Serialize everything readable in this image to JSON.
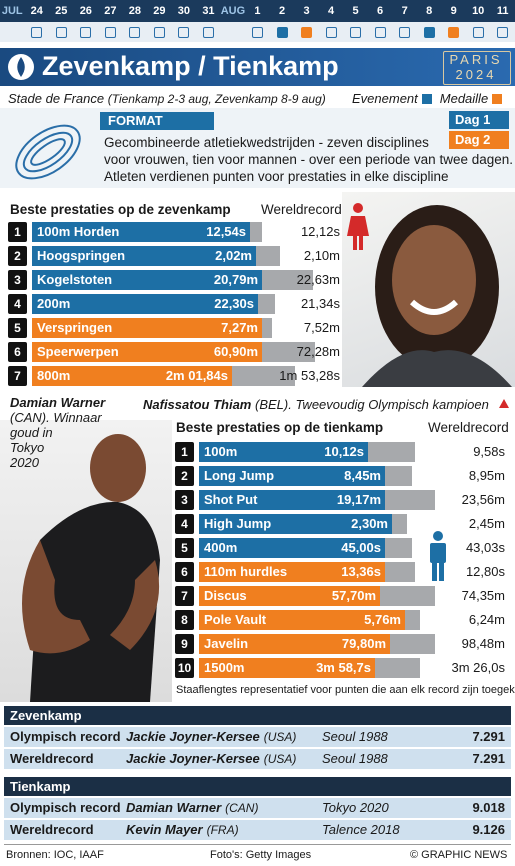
{
  "timeline": [
    {
      "label": "JUL"
    },
    {
      "label": "24",
      "fill": null
    },
    {
      "label": "25",
      "fill": null
    },
    {
      "label": "26",
      "fill": null
    },
    {
      "label": "27",
      "fill": null
    },
    {
      "label": "28",
      "fill": null
    },
    {
      "label": "29",
      "fill": null
    },
    {
      "label": "30",
      "fill": null
    },
    {
      "label": "31",
      "fill": null
    },
    {
      "label": "AUG"
    },
    {
      "label": "1",
      "fill": null
    },
    {
      "label": "2",
      "fill": "#1d6fa5"
    },
    {
      "label": "3",
      "fill": "#f07f1f"
    },
    {
      "label": "4",
      "fill": null
    },
    {
      "label": "5",
      "fill": null
    },
    {
      "label": "6",
      "fill": null
    },
    {
      "label": "7",
      "fill": null
    },
    {
      "label": "8",
      "fill": "#1d6fa5"
    },
    {
      "label": "9",
      "fill": "#f07f1f"
    },
    {
      "label": "10",
      "fill": null
    },
    {
      "label": "11",
      "fill": null
    }
  ],
  "title": "Zevenkamp / Tienkamp",
  "logo": [
    "PARIS",
    "2024"
  ],
  "venue": "Stade de France",
  "venue_dates": "(Tienkamp 2-3 aug, Zevenkamp 8-9 aug)",
  "legend": [
    {
      "label": "Evenement",
      "color": "#1d6fa5"
    },
    {
      "label": "Medaille",
      "color": "#f07f1f"
    }
  ],
  "format": {
    "label": "FORMAT",
    "text": [
      "Gecombineerde atletiekwedstrijden - zeven disciplines",
      "voor vrouwen, tien voor mannen - over een periode van twee dagen.",
      "Atleten verdienen punten voor prestaties in elke discipline"
    ],
    "days": [
      {
        "label": "Dag 1",
        "color": "#1d6fa5"
      },
      {
        "label": "Dag 2",
        "color": "#f07f1f"
      }
    ]
  },
  "heptathlon": {
    "title": "Beste prestaties op de zevenkamp",
    "record_header": "Wereldrecord",
    "events": [
      {
        "rank": 1,
        "name": "100m Horden",
        "best": "12,54s",
        "record": "12,12s",
        "color": "#1d6fa5"
      },
      {
        "rank": 2,
        "name": "Hoogspringen",
        "best": "2,02m",
        "record": "2,10m",
        "color": "#1d6fa5"
      },
      {
        "rank": 3,
        "name": "Kogelstoten",
        "best": "20,79m",
        "record": "22,63m",
        "color": "#1d6fa5"
      },
      {
        "rank": 4,
        "name": "200m",
        "best": "22,30s",
        "record": "21,34s",
        "color": "#1d6fa5"
      },
      {
        "rank": 5,
        "name": "Verspringen",
        "best": "7,27m",
        "record": "7,52m",
        "color": "#f07f1f"
      },
      {
        "rank": 6,
        "name": "Speerwerpen",
        "best": "60,90m",
        "record": "72,28m",
        "color": "#f07f1f"
      },
      {
        "rank": 7,
        "name": "800m",
        "best": "2m 01,84s",
        "record": "1m 53,28s",
        "color": "#f07f1f"
      }
    ]
  },
  "decathlon": {
    "title": "Beste prestaties op de tienkamp",
    "record_header": "Wereldrecord",
    "events": [
      {
        "rank": 1,
        "name": "100m",
        "best": "10,12s",
        "record": "9,58s",
        "color": "#1d6fa5"
      },
      {
        "rank": 2,
        "name": "Long Jump",
        "best": "8,45m",
        "record": "8,95m",
        "color": "#1d6fa5"
      },
      {
        "rank": 3,
        "name": "Shot Put",
        "best": "19,17m",
        "record": "23,56m",
        "color": "#1d6fa5"
      },
      {
        "rank": 4,
        "name": "High Jump",
        "best": "2,30m",
        "record": "2,45m",
        "color": "#1d6fa5"
      },
      {
        "rank": 5,
        "name": "400m",
        "best": "45,00s",
        "record": "43,03s",
        "color": "#1d6fa5"
      },
      {
        "rank": 6,
        "name": "110m hurdles",
        "best": "13,36s",
        "record": "12,80s",
        "color": "#f07f1f"
      },
      {
        "rank": 7,
        "name": "Discus",
        "best": "57,70m",
        "record": "74,35m",
        "color": "#f07f1f"
      },
      {
        "rank": 8,
        "name": "Pole Vault",
        "best": "5,76m",
        "record": "6,24m",
        "color": "#f07f1f"
      },
      {
        "rank": 9,
        "name": "Javelin",
        "best": "79,80m",
        "record": "98,48m",
        "color": "#f07f1f"
      },
      {
        "rank": 10,
        "name": "1500m",
        "best": "3m 58,7s",
        "record": "3m 26,0s",
        "color": "#f07f1f"
      }
    ]
  },
  "warner": {
    "name": "Damian Warner",
    "text": [
      "(CAN). Winnaar",
      "goud in",
      "Tokyo",
      "2020"
    ]
  },
  "thiam": {
    "name": "Nafissatou Thiam",
    "country": "(BEL).",
    "text": "Tweevoudig Olympisch kampioen"
  },
  "note": "Staaflengtes representatief voor punten die aan elk record zijn toegekend",
  "records": [
    {
      "title": "Zevenkamp",
      "rows": [
        {
          "type": "Olympisch record",
          "athlete": "Jackie Joyner-Kersee",
          "country": "(USA)",
          "place": "Seoul 1988",
          "points": "7.291"
        },
        {
          "type": "Wereldrecord",
          "athlete": "Jackie Joyner-Kersee",
          "country": "(USA)",
          "place": "Seoul 1988",
          "points": "7.291"
        }
      ]
    },
    {
      "title": "Tienkamp",
      "rows": [
        {
          "type": "Olympisch record",
          "athlete": "Damian Warner",
          "country": "(CAN)",
          "place": "Tokyo 2020",
          "points": "9.018"
        },
        {
          "type": "Wereldrecord",
          "athlete": "Kevin Mayer",
          "country": "(FRA)",
          "place": "Talence 2018",
          "points": "9.126"
        }
      ]
    }
  ],
  "footer": {
    "sources": "Bronnen: IOC, IAAF",
    "photos": "Foto's: Getty Images",
    "credit": "© GRAPHIC NEWS"
  }
}
